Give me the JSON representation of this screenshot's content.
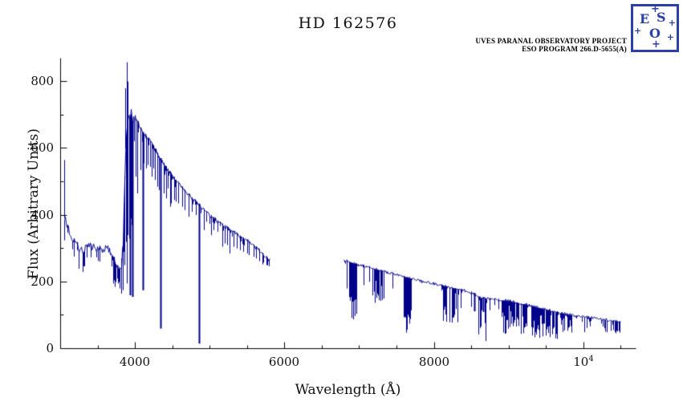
{
  "page": {
    "title": "HD 162576"
  },
  "credit": {
    "line1": "UVES PARANAL OBSERVATORY PROJECT",
    "line2": "ESO PROGRAM 266.D-5655(A)"
  },
  "logo": {
    "e": "E",
    "s": "S",
    "o": "O",
    "star": "+"
  },
  "chart_data": {
    "type": "line",
    "title": "HD 162576",
    "xlabel": "Wavelength (Å)",
    "ylabel": "Flux (Arbitrary Units)",
    "xlim": [
      3000,
      10700
    ],
    "ylim": [
      0,
      870
    ],
    "grid": false,
    "legend": "none",
    "line_color": "#00008b",
    "axis_color": "#000000",
    "x_ticks": [
      {
        "value": 4000,
        "label": "4000"
      },
      {
        "value": 6000,
        "label": "6000"
      },
      {
        "value": 8000,
        "label": "8000"
      },
      {
        "value": 10000,
        "label": "10^4"
      }
    ],
    "x_minor_step": 500,
    "y_ticks": [
      {
        "value": 0,
        "label": "0"
      },
      {
        "value": 200,
        "label": "200"
      },
      {
        "value": 400,
        "label": "400"
      },
      {
        "value": 600,
        "label": "600"
      },
      {
        "value": 800,
        "label": "800"
      }
    ],
    "y_minor_step": 100,
    "gap": [
      5810,
      6790
    ],
    "segments": [
      {
        "name": "blue-arm",
        "seed": 7,
        "micro_prob": 0.28,
        "micro_depth": 2.6,
        "noise": [
          [
            3050,
            3450,
            16
          ],
          [
            3450,
            3800,
            13
          ],
          [
            3800,
            4000,
            20
          ],
          [
            4000,
            4300,
            9
          ],
          [
            4300,
            5810,
            6
          ]
        ],
        "continuum": [
          [
            3050,
            400
          ],
          [
            3100,
            360
          ],
          [
            3150,
            335
          ],
          [
            3200,
            315
          ],
          [
            3250,
            302
          ],
          [
            3300,
            295
          ],
          [
            3350,
            298
          ],
          [
            3400,
            302
          ],
          [
            3450,
            298
          ],
          [
            3500,
            293
          ],
          [
            3550,
            296
          ],
          [
            3600,
            300
          ],
          [
            3650,
            295
          ],
          [
            3700,
            278
          ],
          [
            3740,
            252
          ],
          [
            3780,
            235
          ],
          [
            3810,
            240
          ],
          [
            3840,
            320
          ],
          [
            3865,
            560
          ],
          [
            3885,
            655
          ],
          [
            3905,
            700
          ],
          [
            3925,
            685
          ],
          [
            3945,
            700
          ],
          [
            3965,
            675
          ],
          [
            3985,
            685
          ],
          [
            4000,
            690
          ],
          [
            4050,
            668
          ],
          [
            4100,
            645
          ],
          [
            4150,
            632
          ],
          [
            4200,
            618
          ],
          [
            4250,
            600
          ],
          [
            4300,
            582
          ],
          [
            4350,
            563
          ],
          [
            4400,
            547
          ],
          [
            4450,
            531
          ],
          [
            4500,
            516
          ],
          [
            4550,
            502
          ],
          [
            4600,
            489
          ],
          [
            4650,
            477
          ],
          [
            4700,
            464
          ],
          [
            4750,
            452
          ],
          [
            4800,
            441
          ],
          [
            4850,
            431
          ],
          [
            4900,
            420
          ],
          [
            4950,
            409
          ],
          [
            5000,
            399
          ],
          [
            5100,
            382
          ],
          [
            5200,
            366
          ],
          [
            5300,
            351
          ],
          [
            5400,
            336
          ],
          [
            5500,
            322
          ],
          [
            5600,
            305
          ],
          [
            5700,
            286
          ],
          [
            5780,
            268
          ],
          [
            5810,
            263
          ]
        ]
      },
      {
        "name": "red-arm",
        "seed": 13,
        "micro_prob": 0.14,
        "micro_depth": 2.0,
        "noise": [
          [
            6790,
            8400,
            3.5
          ],
          [
            8400,
            10500,
            4.5
          ]
        ],
        "continuum": [
          [
            6790,
            266
          ],
          [
            6850,
            261
          ],
          [
            6900,
            257
          ],
          [
            6950,
            254
          ],
          [
            7000,
            251
          ],
          [
            7100,
            245
          ],
          [
            7200,
            239
          ],
          [
            7300,
            233
          ],
          [
            7400,
            227
          ],
          [
            7500,
            221
          ],
          [
            7600,
            215
          ],
          [
            7700,
            209
          ],
          [
            7800,
            204
          ],
          [
            7900,
            199
          ],
          [
            8000,
            194
          ],
          [
            8100,
            189
          ],
          [
            8200,
            184
          ],
          [
            8300,
            179
          ],
          [
            8400,
            174
          ],
          [
            8500,
            167
          ],
          [
            8550,
            162
          ],
          [
            8600,
            152
          ],
          [
            8700,
            149
          ],
          [
            8800,
            147
          ],
          [
            8900,
            145
          ],
          [
            9000,
            142
          ],
          [
            9100,
            138
          ],
          [
            9200,
            133
          ],
          [
            9300,
            128
          ],
          [
            9400,
            122
          ],
          [
            9500,
            116
          ],
          [
            9600,
            111
          ],
          [
            9700,
            106
          ],
          [
            9800,
            102
          ],
          [
            9900,
            98
          ],
          [
            10000,
            95
          ],
          [
            10100,
            92
          ],
          [
            10200,
            89
          ],
          [
            10300,
            86
          ],
          [
            10400,
            83
          ],
          [
            10500,
            81
          ]
        ]
      }
    ],
    "absorption_lines": [
      [
        3712,
        195,
        1
      ],
      [
        3722,
        205,
        1
      ],
      [
        3734,
        185,
        1
      ],
      [
        3745,
        200,
        1
      ],
      [
        3760,
        210,
        1
      ],
      [
        3771,
        195,
        1
      ],
      [
        3782,
        200,
        1
      ],
      [
        3798,
        180,
        1
      ],
      [
        3820,
        165,
        1
      ],
      [
        3835,
        175,
        1
      ],
      [
        3850,
        290,
        1
      ],
      [
        3860,
        250,
        1
      ],
      [
        3880,
        320,
        1
      ],
      [
        3889,
        195,
        1
      ],
      [
        3900,
        340,
        1
      ],
      [
        3920,
        330,
        1
      ],
      [
        3933,
        160,
        2
      ],
      [
        3946,
        390,
        1
      ],
      [
        3952,
        370,
        1
      ],
      [
        3970,
        155,
        2
      ],
      [
        4009,
        515,
        1
      ],
      [
        4026,
        465,
        1
      ],
      [
        4069,
        535,
        1
      ],
      [
        4101,
        175,
        2
      ],
      [
        4121,
        555,
        1
      ],
      [
        4144,
        540,
        1
      ],
      [
        4172,
        550,
        1
      ],
      [
        4200,
        545,
        1
      ],
      [
        4226,
        515,
        1
      ],
      [
        4250,
        540,
        1
      ],
      [
        4271,
        505,
        1
      ],
      [
        4300,
        485,
        1
      ],
      [
        4326,
        475,
        1
      ],
      [
        4340,
        60,
        2
      ],
      [
        4383,
        465,
        1
      ],
      [
        4415,
        450,
        1
      ],
      [
        4437,
        480,
        1
      ],
      [
        4471,
        425,
        1
      ],
      [
        4481,
        435,
        1
      ],
      [
        4520,
        445,
        1
      ],
      [
        4549,
        440,
        1
      ],
      [
        4583,
        435,
        1
      ],
      [
        4629,
        425,
        1
      ],
      [
        4668,
        415,
        1
      ],
      [
        4713,
        395,
        1
      ],
      [
        4762,
        410,
        1
      ],
      [
        4810,
        400,
        1
      ],
      [
        4861,
        15,
        2
      ],
      [
        4922,
        355,
        1
      ],
      [
        4957,
        380,
        1
      ],
      [
        5016,
        340,
        1
      ],
      [
        5048,
        355,
        1
      ],
      [
        5110,
        350,
        1
      ],
      [
        5169,
        305,
        1
      ],
      [
        5198,
        315,
        1
      ],
      [
        5235,
        310,
        1
      ],
      [
        5270,
        285,
        1
      ],
      [
        5317,
        305,
        1
      ],
      [
        5364,
        300,
        1
      ],
      [
        5406,
        295,
        1
      ],
      [
        5446,
        290,
        1
      ],
      [
        5497,
        285,
        1
      ],
      [
        5528,
        280,
        1
      ],
      [
        5586,
        275,
        1
      ],
      [
        5625,
        270,
        1
      ],
      [
        5658,
        262,
        1
      ],
      [
        5711,
        252,
        1
      ],
      [
        5755,
        250,
        1
      ],
      [
        6830,
        180,
        1
      ],
      [
        7060,
        190,
        1
      ],
      [
        7130,
        200,
        1
      ],
      [
        7450,
        180,
        1
      ],
      [
        8498,
        125,
        1
      ],
      [
        8542,
        112,
        2
      ],
      [
        8598,
        128,
        1
      ],
      [
        8662,
        110,
        2
      ],
      [
        8750,
        115,
        1
      ],
      [
        8806,
        130,
        1
      ],
      [
        8862,
        118,
        1
      ],
      [
        9015,
        102,
        1
      ],
      [
        9229,
        92,
        1
      ],
      [
        9546,
        82,
        1
      ],
      [
        10049,
        62,
        1
      ]
    ],
    "emission_spikes": [
      [
        3056,
        565,
        1
      ],
      [
        3874,
        780,
        1
      ],
      [
        3890,
        858,
        1
      ],
      [
        3898,
        800,
        1
      ]
    ],
    "telluric_bands": [
      {
        "from": 6865,
        "to": 6965,
        "floor": 0.32,
        "density": 0.55
      },
      {
        "from": 7165,
        "to": 7345,
        "floor": 0.45,
        "density": 0.5
      },
      {
        "from": 7590,
        "to": 7695,
        "floor": 0.1,
        "density": 0.85
      },
      {
        "from": 8100,
        "to": 8370,
        "floor": 0.42,
        "density": 0.55
      },
      {
        "from": 8580,
        "to": 8700,
        "floor": 0.12,
        "density": 0.35
      },
      {
        "from": 8900,
        "to": 9250,
        "floor": 0.3,
        "density": 0.6
      },
      {
        "from": 9300,
        "to": 9650,
        "floor": 0.25,
        "density": 0.7
      },
      {
        "from": 9700,
        "to": 9850,
        "floor": 0.35,
        "density": 0.55
      },
      {
        "from": 9950,
        "to": 10120,
        "floor": 0.5,
        "density": 0.4
      },
      {
        "from": 10250,
        "to": 10500,
        "floor": 0.55,
        "density": 0.4
      }
    ]
  }
}
